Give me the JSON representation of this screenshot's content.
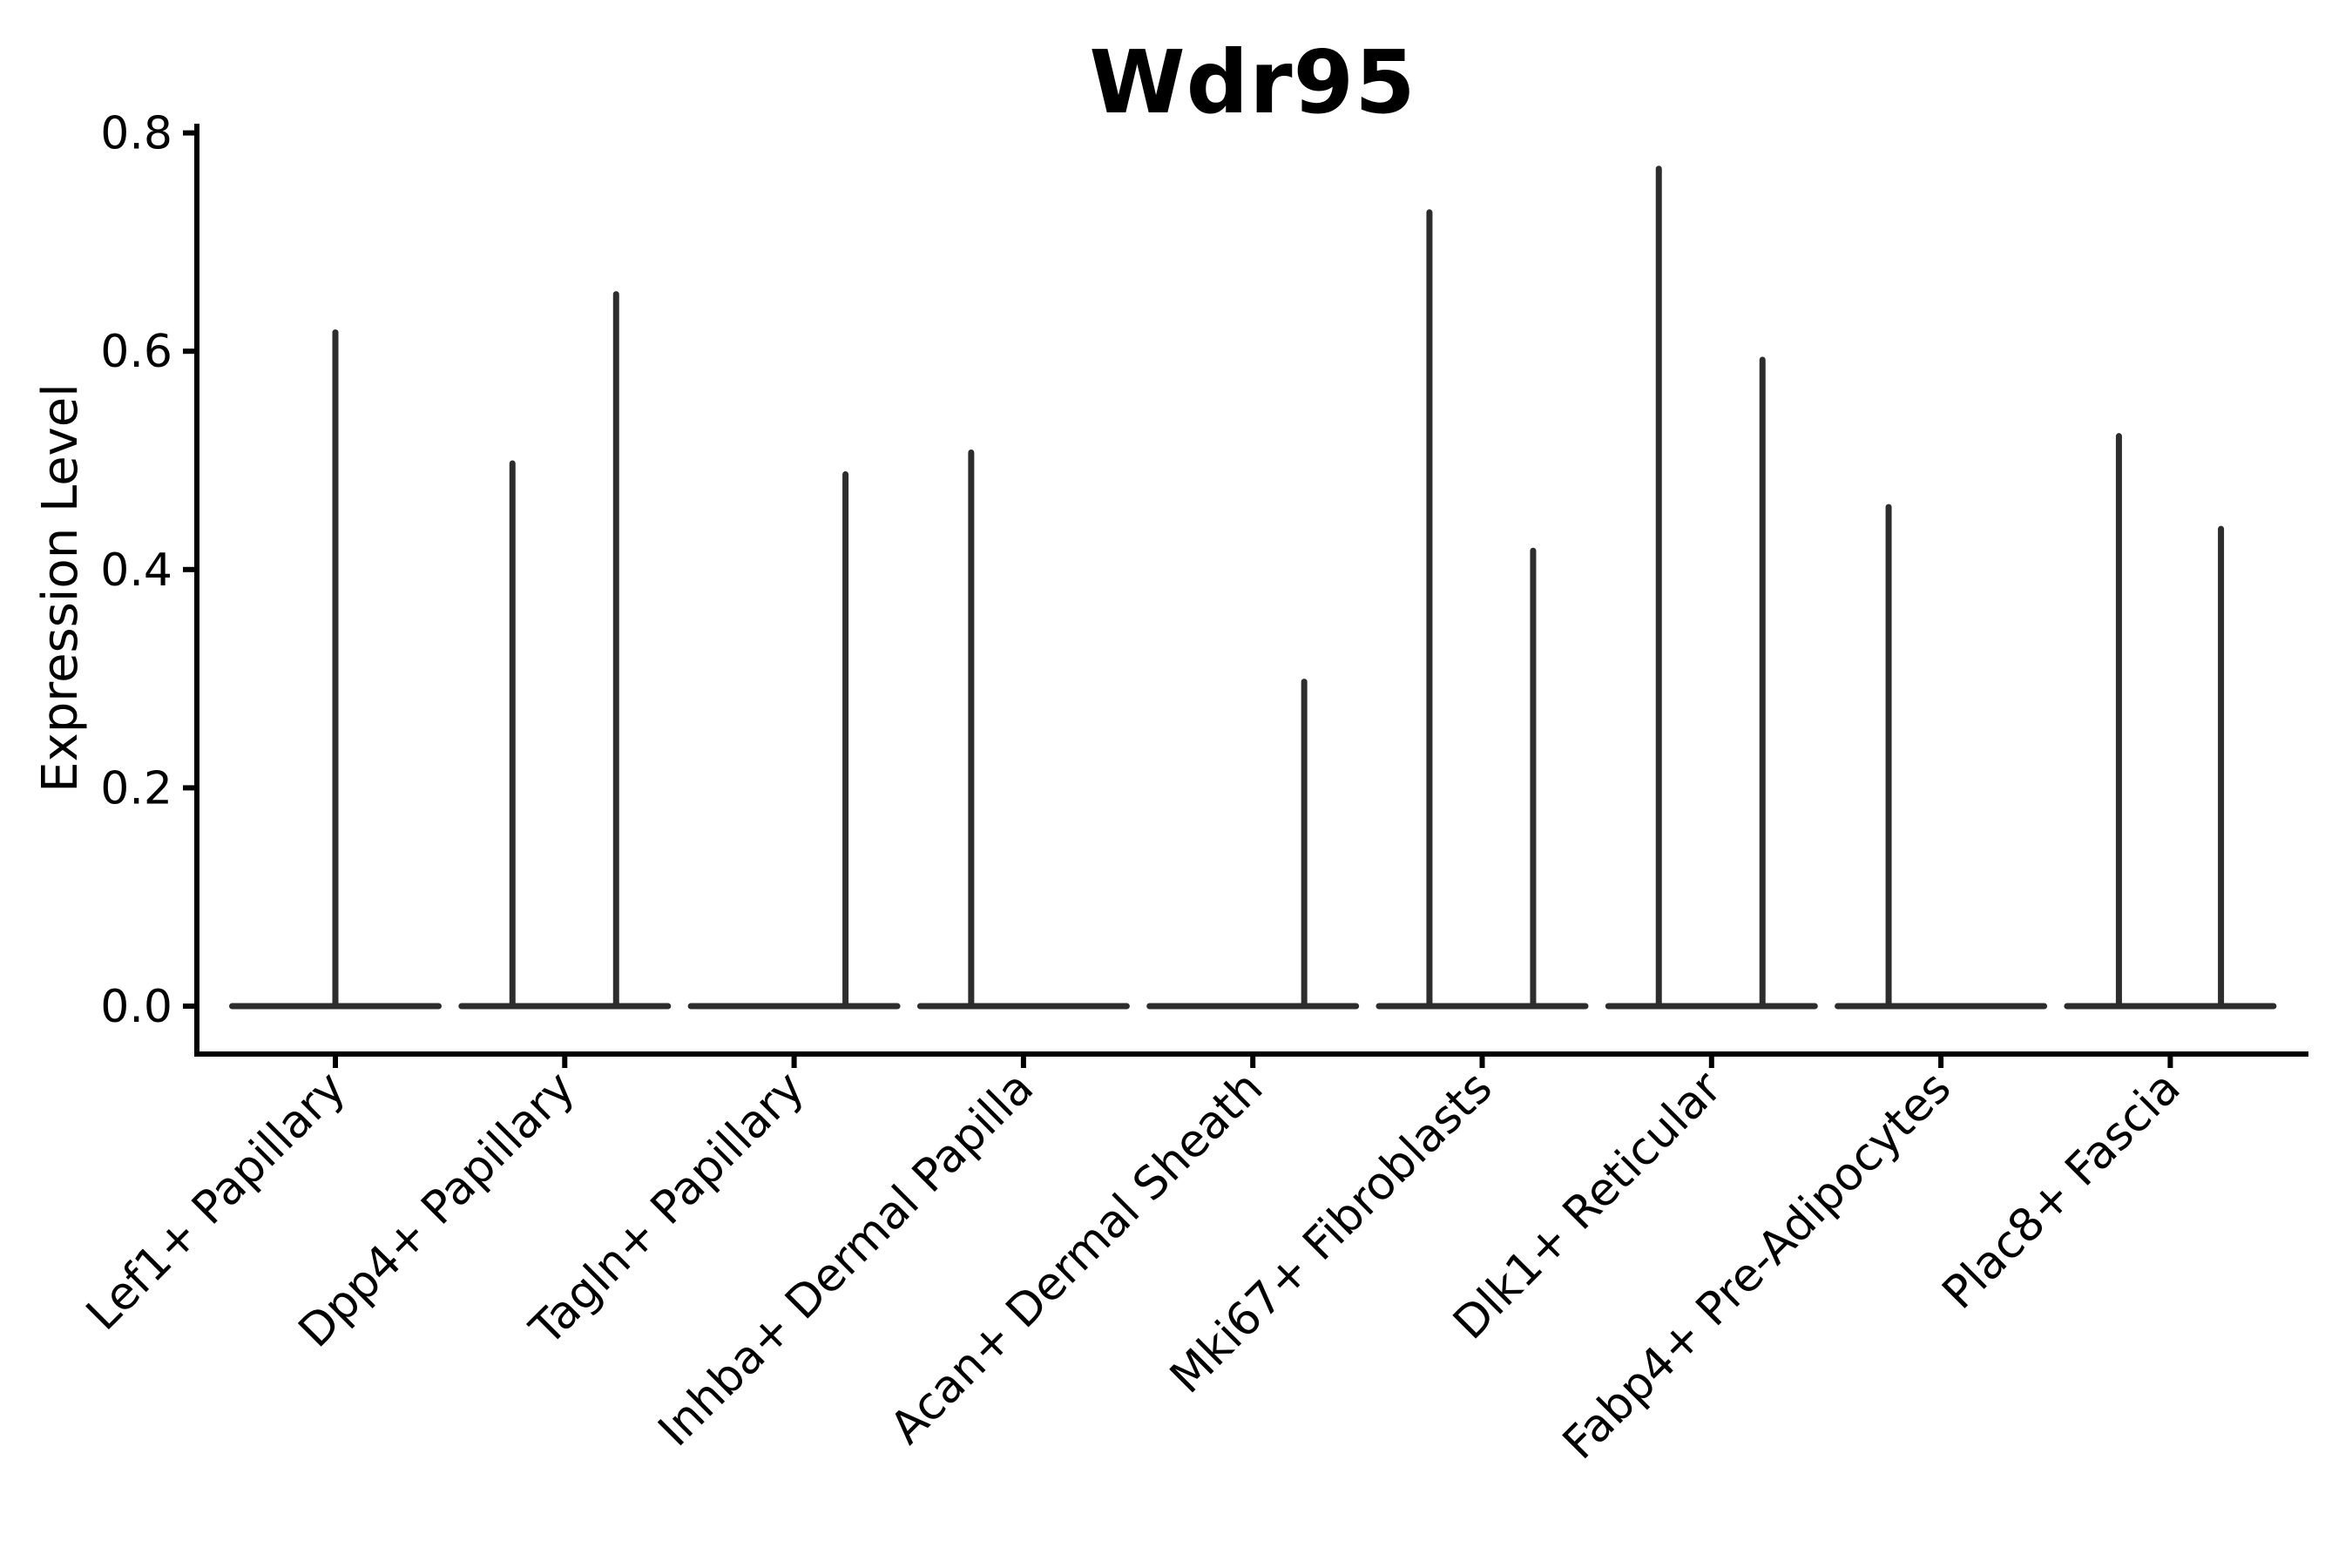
{
  "chart_data": {
    "type": "violin",
    "title": "Wdr95",
    "xlabel": "",
    "ylabel": "Expression Level",
    "ylim": [
      -0.044,
      0.808
    ],
    "yticks": [
      {
        "value": 0.0,
        "label": "0.0"
      },
      {
        "value": 0.2,
        "label": "0.2"
      },
      {
        "value": 0.4,
        "label": "0.4"
      },
      {
        "value": 0.6,
        "label": "0.6"
      },
      {
        "value": 0.8,
        "label": "0.8"
      }
    ],
    "x_tick_rotation": 45,
    "grid": false,
    "legend": null,
    "violin_color": "#2d2d2d",
    "axis_color": "#000000",
    "note": "Each cell type shows a violin collapsed to a flat bar at 0 with thin spikes reaching the maximum expression; offset is the spike position as a fraction of category spacing",
    "categories": [
      {
        "label": "Lef1+ Papillary",
        "spikes": [
          {
            "offset": 0.0,
            "max": 0.62
          }
        ]
      },
      {
        "label": "Dpp4+ Papillary",
        "spikes": [
          {
            "offset": -0.228,
            "max": 0.5
          },
          {
            "offset": 0.224,
            "max": 0.655
          }
        ]
      },
      {
        "label": "Tagln+ Papillary",
        "spikes": [
          {
            "offset": 0.224,
            "max": 0.49
          }
        ]
      },
      {
        "label": "Inhba+ Dermal Papilla",
        "spikes": [
          {
            "offset": -0.228,
            "max": 0.51
          }
        ]
      },
      {
        "label": "Acan+ Dermal Sheath",
        "spikes": [
          {
            "offset": 0.224,
            "max": 0.3
          }
        ]
      },
      {
        "label": "Mki67+ Fibroblasts",
        "spikes": [
          {
            "offset": -0.23,
            "max": 0.73
          },
          {
            "offset": 0.222,
            "max": 0.42
          }
        ]
      },
      {
        "label": "Dlk1+ Reticular",
        "spikes": [
          {
            "offset": -0.23,
            "max": 0.77
          },
          {
            "offset": 0.222,
            "max": 0.595
          }
        ]
      },
      {
        "label": "Fabp4+ Pre-Adipocytes",
        "spikes": [
          {
            "offset": -0.228,
            "max": 0.46
          }
        ]
      },
      {
        "label": "Plac8+ Fascia",
        "spikes": [
          {
            "offset": -0.224,
            "max": 0.525
          },
          {
            "offset": 0.221,
            "max": 0.44
          }
        ]
      }
    ]
  }
}
